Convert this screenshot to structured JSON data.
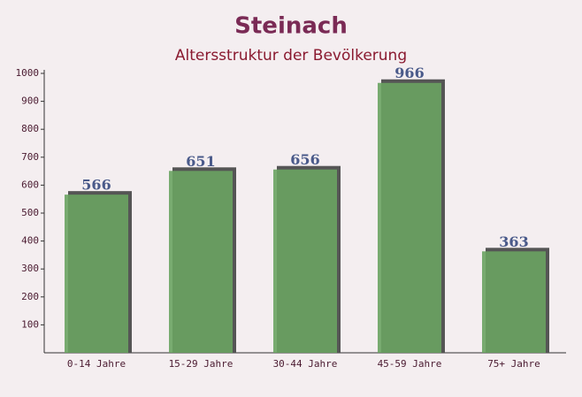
{
  "chart_data": {
    "type": "bar",
    "title": "Steinach",
    "subtitle": "Altersstruktur der Bevölkerung",
    "categories": [
      "0-14 Jahre",
      "15-29 Jahre",
      "30-44 Jahre",
      "45-59 Jahre",
      "75+ Jahre"
    ],
    "values": [
      566,
      651,
      656,
      966,
      363
    ],
    "color": "#6aa362",
    "ylim": [
      0,
      1000
    ],
    "yticks": [
      100,
      200,
      300,
      400,
      500,
      600,
      700,
      800,
      900,
      1000
    ]
  }
}
